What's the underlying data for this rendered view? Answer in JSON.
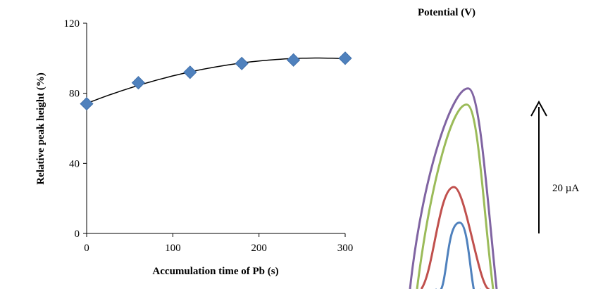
{
  "chart_data": [
    {
      "type": "scatter",
      "xlabel": "Accumulation time of Pb (s)",
      "ylabel": "Relative peak height (%)",
      "xlim": [
        0,
        300
      ],
      "ylim": [
        0,
        120
      ],
      "xticks": [
        "0",
        "100",
        "200",
        "300"
      ],
      "yticks": [
        "0",
        "40",
        "80",
        "120"
      ],
      "series": [
        {
          "marker": "diamond",
          "color": "#4f81bd",
          "x": [
            0,
            60,
            120,
            180,
            240,
            300
          ],
          "y": [
            74,
            86,
            92,
            97,
            99,
            100
          ]
        }
      ],
      "trendline": {
        "type": "polynomial",
        "color": "#000000",
        "coefficients": [
          74.2,
          0.1932,
          -0.00036
        ]
      },
      "grid": false
    },
    {
      "type": "line",
      "xlabel": "Potential (V)",
      "annotation": "20 µA",
      "series": [
        {
          "color": "#4f81bd",
          "peak_height": 0.41
        },
        {
          "color": "#c0504d",
          "peak_height": 0.63
        },
        {
          "color": "#9bbb59",
          "peak_height": 1.14
        },
        {
          "color": "#8064a2",
          "peak_height": 1.24
        }
      ]
    }
  ]
}
